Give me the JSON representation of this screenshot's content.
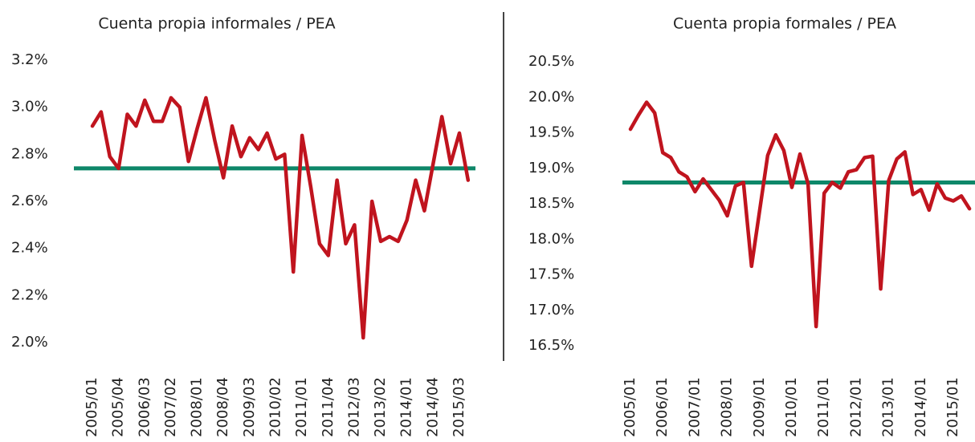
{
  "chart_data": [
    {
      "type": "line",
      "title": "Cuenta propia informales / PEA",
      "categories": [
        "2005/01",
        null,
        null,
        "2005/04",
        null,
        null,
        "2006/03",
        null,
        null,
        "2007/02",
        null,
        null,
        "2008/01",
        null,
        null,
        "2008/04",
        null,
        null,
        "2009/03",
        null,
        null,
        "2010/02",
        null,
        null,
        "2011/01",
        null,
        null,
        "2011/04",
        null,
        null,
        "2012/03",
        null,
        null,
        "2013/02",
        null,
        null,
        "2014/01",
        null,
        null,
        "2014/04",
        null,
        null,
        "2015/03",
        null
      ],
      "series": [
        {
          "color": "#c0141e",
          "values": [
            2.92,
            2.98,
            2.79,
            2.74,
            2.97,
            2.92,
            3.03,
            2.94,
            2.94,
            3.04,
            3.0,
            2.77,
            2.91,
            3.04,
            2.86,
            2.7,
            2.92,
            2.79,
            2.87,
            2.82,
            2.89,
            2.78,
            2.8,
            2.3,
            2.88,
            2.66,
            2.42,
            2.37,
            2.69,
            2.42,
            2.5,
            2.02,
            2.6,
            2.43,
            2.45,
            2.43,
            2.52,
            2.69,
            2.56,
            2.76,
            2.96,
            2.76,
            2.89,
            2.69
          ]
        }
      ],
      "reference_line": {
        "value": 2.74,
        "color": "#0e8769"
      },
      "ylim": [
        2.0,
        3.2
      ],
      "yticks": [
        {
          "value": 2.0,
          "label": "2.0%"
        },
        {
          "value": 2.2,
          "label": "2.2%"
        },
        {
          "value": 2.4,
          "label": "2.4%"
        },
        {
          "value": 2.6,
          "label": "2.6%"
        },
        {
          "value": 2.8,
          "label": "2.8%"
        },
        {
          "value": 3.0,
          "label": "3.0%"
        },
        {
          "value": 3.2,
          "label": "3.2%"
        }
      ]
    },
    {
      "type": "line",
      "title": "Cuenta propia formales / PEA",
      "categories": [
        "2005/01",
        null,
        null,
        null,
        "2006/01",
        null,
        null,
        null,
        "2007/01",
        null,
        null,
        null,
        "2008/01",
        null,
        null,
        null,
        "2009/01",
        null,
        null,
        null,
        "2010/01",
        null,
        null,
        null,
        "2011/01",
        null,
        null,
        null,
        "2012/01",
        null,
        null,
        null,
        "2013/01",
        null,
        null,
        null,
        "2014/01",
        null,
        null,
        null,
        "2015/01",
        null,
        null
      ],
      "series": [
        {
          "color": "#c0141e",
          "values": [
            19.55,
            19.75,
            19.93,
            19.78,
            19.22,
            19.15,
            18.95,
            18.88,
            18.67,
            18.85,
            18.7,
            18.55,
            18.33,
            18.75,
            18.8,
            17.62,
            18.4,
            19.18,
            19.47,
            19.25,
            18.73,
            19.2,
            18.78,
            16.77,
            18.65,
            18.8,
            18.72,
            18.95,
            18.98,
            19.15,
            19.17,
            17.3,
            18.83,
            19.13,
            19.23,
            18.63,
            18.7,
            18.41,
            18.78,
            18.58,
            18.54,
            18.61,
            18.43
          ]
        }
      ],
      "reference_line": {
        "value": 18.8,
        "color": "#0e8769"
      },
      "ylim": [
        16.5,
        20.5
      ],
      "yticks": [
        {
          "value": 16.5,
          "label": "16.5%"
        },
        {
          "value": 17.0,
          "label": "17.0%"
        },
        {
          "value": 17.5,
          "label": "17.5%"
        },
        {
          "value": 18.0,
          "label": "18.0%"
        },
        {
          "value": 18.5,
          "label": "18.5%"
        },
        {
          "value": 19.0,
          "label": "19.0%"
        },
        {
          "value": 19.5,
          "label": "19.5%"
        },
        {
          "value": 20.0,
          "label": "20.0%"
        },
        {
          "value": 20.5,
          "label": "20.5%"
        }
      ]
    }
  ]
}
